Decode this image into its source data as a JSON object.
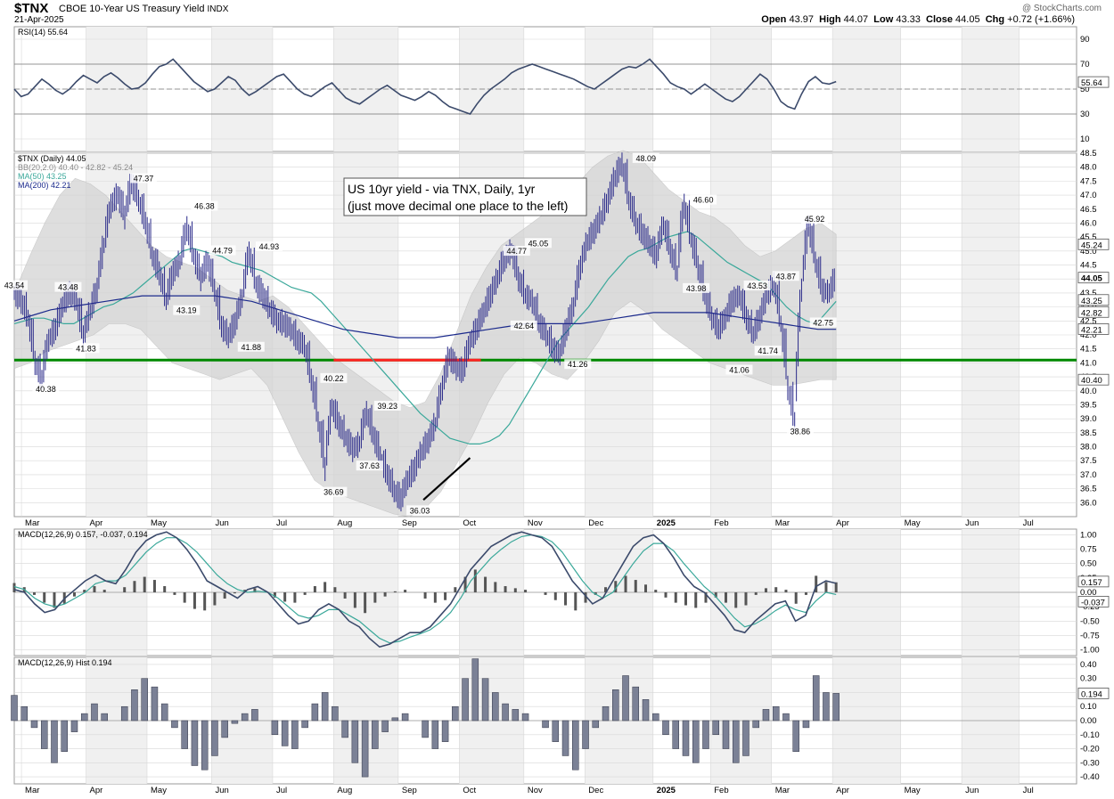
{
  "header": {
    "symbol": "$TNX",
    "name": "CBOE 10-Year US Treasury Yield",
    "exchange": "INDX",
    "date": "21-Apr-2025",
    "watermark": "@ StockCharts.com",
    "open_label": "Open",
    "open": "43.97",
    "high_label": "High",
    "high": "44.07",
    "low_label": "Low",
    "low": "43.33",
    "close_label": "Close",
    "close": "44.05",
    "chg_label": "Chg",
    "chg": "+0.72 (+1.66%)"
  },
  "annotation": {
    "line1": "US 10yr yield - via TNX, Daily, 1yr",
    "line2": "(just move decimal one place to the left)"
  },
  "colors": {
    "price": "#2a2a8a",
    "ma50": "#3aa89a",
    "ma200": "#1b2a8c",
    "band": "#d4d4d4",
    "support": "#008800",
    "resistance": "#ff2222",
    "macd_hist": "#7b8196",
    "grid": "#d8d8d8"
  },
  "chart_data": [
    {
      "type": "line",
      "panel": "RSI",
      "legend": "RSI(14) 55.64",
      "ylim": [
        0,
        100
      ],
      "yticks": [
        10,
        30,
        50,
        70,
        90
      ],
      "reference_lines": [
        30,
        50,
        70
      ],
      "last_value": "55.64",
      "series": [
        {
          "values": [
            50,
            44,
            46,
            52,
            58,
            54,
            49,
            46,
            50,
            56,
            61,
            58,
            55,
            60,
            63,
            59,
            54,
            50,
            51,
            55,
            62,
            68,
            70,
            74,
            68,
            62,
            56,
            52,
            48,
            50,
            55,
            60,
            57,
            50,
            45,
            48,
            52,
            56,
            60,
            62,
            56,
            50,
            46,
            44,
            48,
            52,
            55,
            49,
            43,
            40,
            38,
            42,
            46,
            50,
            53,
            49,
            45,
            43,
            41,
            44,
            48,
            45,
            40,
            36,
            34,
            32,
            30,
            38,
            45,
            50,
            54,
            58,
            63,
            66,
            68,
            70,
            68,
            66,
            64,
            62,
            60,
            58,
            55,
            52,
            50,
            54,
            58,
            62,
            66,
            68,
            67,
            70,
            74,
            68,
            62,
            55,
            52,
            50,
            46,
            50,
            54,
            50,
            46,
            42,
            40,
            44,
            50,
            56,
            62,
            58,
            50,
            40,
            36,
            34,
            46,
            56,
            60,
            55,
            54,
            56
          ]
        }
      ],
      "ylabel": ""
    },
    {
      "type": "line",
      "panel": "price",
      "legend": [
        "$TNX (Daily) 44.05",
        "BB(20,2.0) 40.40 - 42.82 - 45.24",
        "MA(50) 43.25",
        "MA(200) 42.21"
      ],
      "ylim": [
        35.5,
        48.5
      ],
      "yticks": [
        36.0,
        36.5,
        37.0,
        37.5,
        38.0,
        38.5,
        39.0,
        39.5,
        40.0,
        40.5,
        41.0,
        41.5,
        42.0,
        42.5,
        43.0,
        43.5,
        44.0,
        44.5,
        45.0,
        45.5,
        46.0,
        46.5,
        47.0,
        47.5,
        48.0,
        48.5
      ],
      "x_labels": [
        "Mar",
        "Apr",
        "May",
        "Jun",
        "Jul",
        "Aug",
        "Sep",
        "Oct",
        "Nov",
        "Dec",
        "2025",
        "Feb",
        "Mar",
        "Apr",
        "May",
        "Jun",
        "Jul"
      ],
      "x_label_weeks": [
        1,
        10,
        18.5,
        27.5,
        36,
        44.5,
        53.5,
        62,
        71,
        79.5,
        89,
        97,
        105.5,
        114,
        123.5,
        132,
        140
      ],
      "series": [
        {
          "name": "$TNX (Daily)",
          "values": [
            43.5,
            43.2,
            42.6,
            41.0,
            40.4,
            41.8,
            42.2,
            43.0,
            43.5,
            43.2,
            41.9,
            42.8,
            43.6,
            45.2,
            46.6,
            47.0,
            46.2,
            47.4,
            46.8,
            46.0,
            44.8,
            44.2,
            43.2,
            44.2,
            44.6,
            45.8,
            44.8,
            44.0,
            44.6,
            43.6,
            42.3,
            41.9,
            42.4,
            43.3,
            44.9,
            43.8,
            43.4,
            42.9,
            42.5,
            42.4,
            42.2,
            41.8,
            41.6,
            40.4,
            38.9,
            37.2,
            39.4,
            38.8,
            38.3,
            37.9,
            38.1,
            39.2,
            38.4,
            37.6,
            37.0,
            36.4,
            36.1,
            36.8,
            37.2,
            37.8,
            38.2,
            38.8,
            40.1,
            41.2,
            40.8,
            40.7,
            41.7,
            42.2,
            42.8,
            43.4,
            44.0,
            44.7,
            45.0,
            44.0,
            43.4,
            43.2,
            42.4,
            42.0,
            41.5,
            41.3,
            42.2,
            43.0,
            44.4,
            45.3,
            45.7,
            46.2,
            46.8,
            47.6,
            48.09,
            46.8,
            46.0,
            45.6,
            45.2,
            44.8,
            45.9,
            45.0,
            44.2,
            46.6,
            45.4,
            44.4,
            43.4,
            42.6,
            42.2,
            42.6,
            43.2,
            43.4,
            42.6,
            42.0,
            42.6,
            43.4,
            43.8,
            42.4,
            40.1,
            38.9,
            43.6,
            45.9,
            44.6,
            43.6,
            43.5,
            44.05
          ]
        },
        {
          "name": "MA(50)",
          "values": [
            42.4,
            42.5,
            42.6,
            42.6,
            42.5,
            42.4,
            42.4,
            42.6,
            42.8,
            43.0,
            43.1,
            43.3,
            43.5,
            43.8,
            44.1,
            44.4,
            44.7,
            45.0,
            45.1,
            45.0,
            44.9,
            44.8,
            44.6,
            44.5,
            44.4,
            44.3,
            44.1,
            43.9,
            43.7,
            43.6,
            43.5,
            43.2,
            42.8,
            42.4,
            42.0,
            41.6,
            41.2,
            40.8,
            40.4,
            40.0,
            39.6,
            39.2,
            38.9,
            38.6,
            38.3,
            38.2,
            38.1,
            38.1,
            38.2,
            38.4,
            38.8,
            39.4,
            40.0,
            40.6,
            41.2,
            41.8,
            42.2,
            42.6,
            43.0,
            43.5,
            44.0,
            44.4,
            44.8,
            45.0,
            45.1,
            45.3,
            45.5,
            45.6,
            45.7,
            45.5,
            45.2,
            44.9,
            44.6,
            44.4,
            44.2,
            44.0,
            43.8,
            43.4,
            43.0,
            42.7,
            42.5,
            42.4,
            42.8,
            43.2
          ]
        },
        {
          "name": "MA(200)",
          "values": [
            42.5,
            42.7,
            42.9,
            43.0,
            43.1,
            43.2,
            43.3,
            43.4,
            43.4,
            43.4,
            43.4,
            43.4,
            43.3,
            43.2,
            43.0,
            42.8,
            42.6,
            42.4,
            42.2,
            42.1,
            42.0,
            41.9,
            41.9,
            41.9,
            42.0,
            42.1,
            42.2,
            42.3,
            42.4,
            42.4,
            42.4,
            42.4,
            42.5,
            42.6,
            42.7,
            42.8,
            42.8,
            42.8,
            42.8,
            42.7,
            42.6,
            42.5,
            42.4,
            42.3,
            42.2,
            42.2
          ]
        },
        {
          "name": "BB upper",
          "values": [
            43.5,
            44.8,
            46.0,
            47.0,
            47.6,
            47.4,
            47.0,
            46.4,
            45.8,
            45.2,
            44.8,
            44.6,
            44.4,
            44.0,
            43.6,
            43.4,
            43.2,
            43.4,
            43.0,
            42.4,
            41.8,
            41.2,
            40.8,
            40.4,
            40.0,
            39.6,
            39.4,
            39.6,
            40.6,
            42.0,
            43.4,
            44.4,
            45.2,
            45.6,
            46.0,
            46.4,
            46.8,
            47.4,
            48.0,
            48.4,
            48.6,
            48.4,
            47.8,
            47.2,
            46.8,
            46.4,
            46.2,
            45.8,
            45.2,
            44.8,
            45.0,
            45.4,
            45.8,
            46.0,
            45.6
          ]
        },
        {
          "name": "BB lower",
          "values": [
            40.8,
            41.0,
            41.4,
            41.6,
            41.8,
            42.0,
            42.4,
            42.4,
            42.2,
            41.6,
            41.0,
            40.8,
            40.6,
            40.4,
            40.6,
            40.8,
            40.2,
            39.0,
            37.8,
            36.8,
            36.4,
            36.2,
            36.0,
            35.8,
            35.6,
            35.5,
            35.8,
            36.4,
            37.4,
            38.4,
            39.6,
            40.6,
            41.2,
            41.0,
            40.6,
            40.4,
            41.0,
            41.8,
            42.8,
            43.2,
            42.8,
            42.2,
            41.8,
            41.4,
            41.0,
            40.8,
            40.6,
            40.4,
            40.2,
            40.2,
            40.3,
            40.4,
            40.4
          ]
        }
      ],
      "data_labels": [
        {
          "text": "43.54",
          "week": 0,
          "value": 43.54
        },
        {
          "text": "40.38",
          "week": 4.4,
          "value": 40.38
        },
        {
          "text": "43.48",
          "week": 7.5,
          "value": 43.48
        },
        {
          "text": "41.83",
          "week": 10,
          "value": 41.83
        },
        {
          "text": "47.37",
          "week": 18,
          "value": 47.37
        },
        {
          "text": "43.19",
          "week": 24,
          "value": 43.19
        },
        {
          "text": "46.38",
          "week": 26.5,
          "value": 46.38
        },
        {
          "text": "44.79",
          "week": 29,
          "value": 44.79
        },
        {
          "text": "41.88",
          "week": 33,
          "value": 41.88
        },
        {
          "text": "44.93",
          "week": 35.5,
          "value": 44.93
        },
        {
          "text": "40.22",
          "week": 44.5,
          "value": 40.22
        },
        {
          "text": "36.69",
          "week": 44.5,
          "value": 36.69
        },
        {
          "text": "37.63",
          "week": 49.5,
          "value": 37.63
        },
        {
          "text": "39.23",
          "week": 52,
          "value": 39.23
        },
        {
          "text": "36.03",
          "week": 56.5,
          "value": 36.03
        },
        {
          "text": "44.77",
          "week": 70,
          "value": 44.77
        },
        {
          "text": "45.05",
          "week": 73,
          "value": 45.05
        },
        {
          "text": "42.64",
          "week": 71,
          "value": 42.64
        },
        {
          "text": "41.26",
          "week": 78.5,
          "value": 41.26
        },
        {
          "text": "48.09",
          "week": 88,
          "value": 48.09
        },
        {
          "text": "46.60",
          "week": 96,
          "value": 46.6
        },
        {
          "text": "43.98",
          "week": 95,
          "value": 43.98
        },
        {
          "text": "41.06",
          "week": 101,
          "value": 41.06
        },
        {
          "text": "43.53",
          "week": 103.5,
          "value": 43.53
        },
        {
          "text": "41.74",
          "week": 105,
          "value": 41.74
        },
        {
          "text": "43.87",
          "week": 107.5,
          "value": 43.87
        },
        {
          "text": "45.92",
          "week": 111.5,
          "value": 45.92
        },
        {
          "text": "42.75",
          "week": 112.7,
          "value": 42.75
        },
        {
          "text": "38.86",
          "week": 109.5,
          "value": 38.86
        }
      ],
      "horizontal_line": 41.1,
      "resistance_segment": {
        "from_week": 44.5,
        "to_week": 65,
        "value": 41.1
      },
      "trend_line": {
        "from_week": 57,
        "from_value": 36.1,
        "to_week": 63.5,
        "to_value": 37.6
      },
      "right_labels": [
        "45.24",
        "44.05",
        "43.25",
        "42.82",
        "42.21",
        "40.40"
      ],
      "right_label_values": [
        45.24,
        44.05,
        43.25,
        42.82,
        42.21,
        40.4
      ],
      "ylabel": ""
    },
    {
      "type": "line",
      "panel": "MACD",
      "legend": "MACD(12,26,9) 0.157, -0.037, 0.194",
      "ylim": [
        -1.1,
        1.1
      ],
      "yticks": [
        -1.0,
        -0.75,
        -0.5,
        -0.25,
        0.0,
        0.25,
        0.5,
        0.75,
        1.0
      ],
      "right_labels": [
        "0.157",
        "-0.037"
      ],
      "series": [
        {
          "name": "MACD",
          "values": [
            0.05,
            0.0,
            -0.2,
            -0.35,
            -0.3,
            -0.1,
            0.05,
            0.2,
            0.3,
            0.2,
            0.15,
            0.4,
            0.7,
            0.9,
            1.0,
            1.05,
            0.95,
            0.75,
            0.5,
            0.2,
            0.1,
            0.0,
            -0.1,
            0.05,
            0.1,
            0.0,
            -0.2,
            -0.4,
            -0.55,
            -0.5,
            -0.3,
            -0.2,
            -0.3,
            -0.5,
            -0.6,
            -0.8,
            -0.95,
            -0.9,
            -0.8,
            -0.7,
            -0.7,
            -0.6,
            -0.4,
            -0.2,
            0.1,
            0.4,
            0.6,
            0.8,
            0.9,
            1.0,
            1.05,
            1.0,
            0.95,
            0.8,
            0.5,
            0.2,
            0.0,
            -0.2,
            -0.1,
            0.2,
            0.5,
            0.8,
            0.95,
            1.0,
            0.85,
            0.6,
            0.3,
            0.1,
            0.0,
            -0.2,
            -0.4,
            -0.65,
            -0.7,
            -0.5,
            -0.35,
            -0.2,
            -0.15,
            -0.5,
            -0.4,
            0.1,
            0.2,
            0.157
          ]
        },
        {
          "name": "Signal",
          "values": [
            0.1,
            0.05,
            -0.1,
            -0.2,
            -0.25,
            -0.2,
            -0.1,
            0.0,
            0.15,
            0.2,
            0.2,
            0.3,
            0.5,
            0.7,
            0.85,
            0.95,
            0.95,
            0.85,
            0.7,
            0.5,
            0.3,
            0.15,
            0.05,
            0.0,
            0.02,
            0.0,
            -0.1,
            -0.25,
            -0.4,
            -0.45,
            -0.4,
            -0.3,
            -0.3,
            -0.4,
            -0.5,
            -0.65,
            -0.8,
            -0.88,
            -0.85,
            -0.78,
            -0.72,
            -0.65,
            -0.52,
            -0.35,
            -0.1,
            0.2,
            0.4,
            0.6,
            0.75,
            0.88,
            0.97,
            1.0,
            0.97,
            0.88,
            0.7,
            0.45,
            0.2,
            0.0,
            -0.1,
            0.0,
            0.25,
            0.5,
            0.72,
            0.85,
            0.85,
            0.72,
            0.5,
            0.3,
            0.1,
            -0.05,
            -0.25,
            -0.45,
            -0.6,
            -0.55,
            -0.45,
            -0.32,
            -0.22,
            -0.3,
            -0.35,
            -0.15,
            0.0,
            -0.037
          ]
        }
      ],
      "ylabel": ""
    },
    {
      "type": "bar",
      "panel": "MACD Hist",
      "legend": "MACD(12,26,9) Hist 0.194",
      "ylim": [
        -0.45,
        0.45
      ],
      "yticks": [
        -0.4,
        -0.3,
        -0.2,
        -0.1,
        0.0,
        0.1,
        0.2,
        0.3,
        0.4
      ],
      "right_labels": [
        "0.194"
      ],
      "values": [
        0.18,
        0.1,
        -0.05,
        -0.2,
        -0.3,
        -0.22,
        -0.08,
        0.05,
        0.12,
        0.05,
        0.0,
        0.1,
        0.22,
        0.3,
        0.24,
        0.12,
        -0.05,
        -0.2,
        -0.32,
        -0.35,
        -0.25,
        -0.12,
        -0.02,
        0.05,
        0.08,
        0.0,
        -0.1,
        -0.18,
        -0.2,
        -0.05,
        0.12,
        0.2,
        0.1,
        -0.12,
        -0.3,
        -0.4,
        -0.2,
        -0.08,
        0.02,
        0.05,
        0.0,
        -0.12,
        -0.2,
        -0.15,
        0.1,
        0.3,
        0.44,
        0.3,
        0.2,
        0.12,
        0.08,
        0.05,
        0.0,
        -0.05,
        -0.15,
        -0.25,
        -0.35,
        -0.2,
        -0.05,
        0.1,
        0.22,
        0.32,
        0.24,
        0.15,
        0.05,
        -0.1,
        -0.2,
        -0.25,
        -0.3,
        -0.2,
        -0.1,
        -0.2,
        -0.3,
        -0.25,
        -0.05,
        0.08,
        0.1,
        0.05,
        -0.22,
        -0.05,
        0.32,
        0.2,
        0.194
      ],
      "ylabel": ""
    }
  ]
}
